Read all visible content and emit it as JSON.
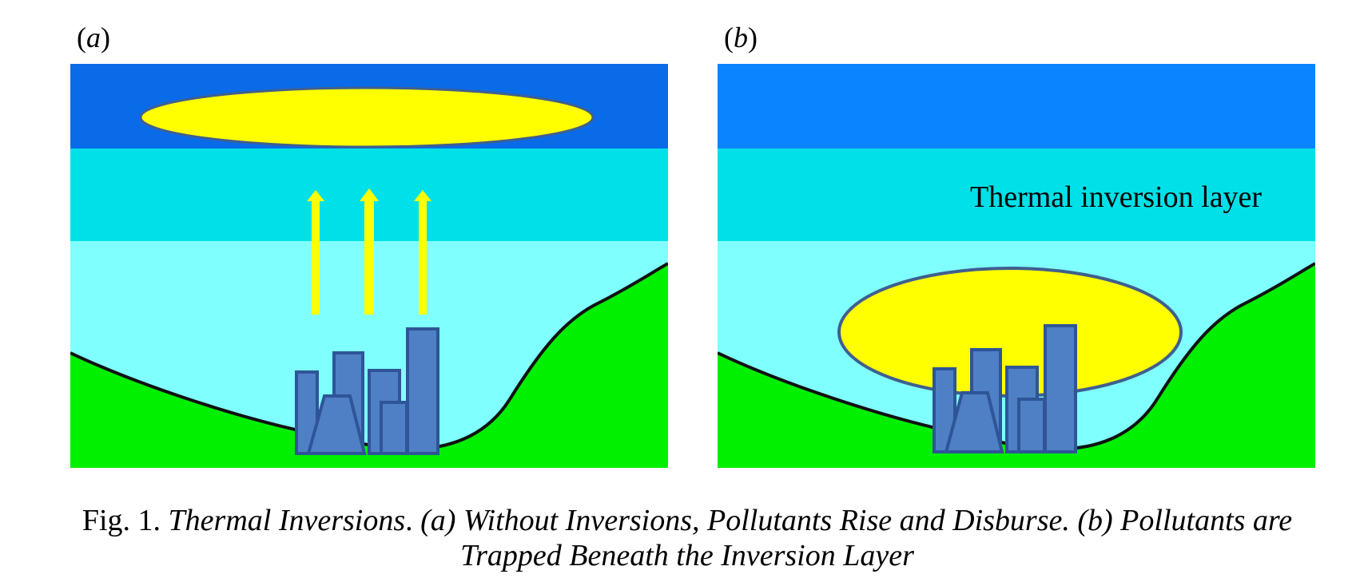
{
  "panels": {
    "a": {
      "label_open": "(",
      "label_letter": "a",
      "label_close": ")"
    },
    "b": {
      "label_open": "(",
      "label_letter": "b",
      "label_close": ")",
      "layer_text": "Thermal inversion layer"
    }
  },
  "colors": {
    "sky_top": "#0A6BE8",
    "inversion_band": "#00E0E8",
    "lower_air": "#80FFFF",
    "ground": "#00F000",
    "pollution": "#FFFF00",
    "buildings": "#4F7FC4",
    "building_outline": "#2E5597"
  },
  "caption": {
    "line1_prefix": "Fig. 1. ",
    "line1_italic": "Thermal Inversions",
    "line1_dot": ". ",
    "line1_rest": "(a) Without Inversions, Pollutants Rise and Disburse. (b) Pollutants are",
    "line2": "Trapped Beneath the Inversion Layer"
  }
}
